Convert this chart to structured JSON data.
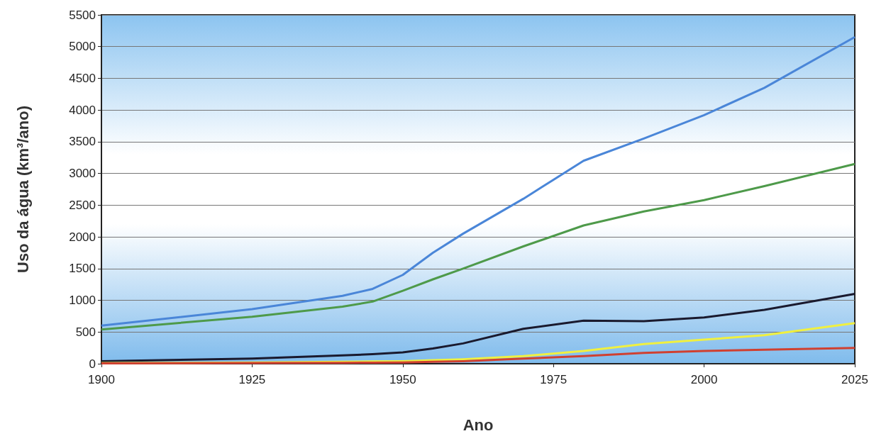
{
  "chart_data": {
    "type": "line",
    "xlabel": "Ano",
    "ylabel": "Uso da água (km³/ano)",
    "x": [
      1900,
      1925,
      1940,
      1945,
      1950,
      1955,
      1960,
      1970,
      1980,
      1990,
      2000,
      2010,
      2025
    ],
    "series": [
      {
        "color": "#4a86d8",
        "values": [
          600,
          860,
          1070,
          1180,
          1400,
          1750,
          2050,
          2600,
          3200,
          3550,
          3920,
          4350,
          5150
        ]
      },
      {
        "color": "#4e9a4a",
        "values": [
          540,
          740,
          900,
          980,
          1150,
          1330,
          1500,
          1850,
          2180,
          2400,
          2580,
          2800,
          3150
        ]
      },
      {
        "color": "#1a1a2e",
        "values": [
          40,
          80,
          130,
          150,
          180,
          240,
          320,
          550,
          680,
          670,
          730,
          850,
          1100
        ]
      },
      {
        "color": "#f0f040",
        "values": [
          10,
          20,
          30,
          35,
          40,
          55,
          70,
          120,
          200,
          310,
          380,
          450,
          640
        ]
      },
      {
        "color": "#d04030",
        "values": [
          5,
          10,
          15,
          18,
          20,
          30,
          40,
          80,
          120,
          170,
          200,
          220,
          250
        ]
      }
    ],
    "xlim": [
      1900,
      2025
    ],
    "xticks": [
      1900,
      1925,
      1950,
      1975,
      2000,
      2025
    ],
    "ylim": [
      0,
      5500
    ],
    "yticks": [
      0,
      500,
      1000,
      1500,
      2000,
      2500,
      3000,
      3500,
      4000,
      4500,
      5000,
      5500
    ],
    "grid": "y",
    "marker": "none",
    "line_style": "solid"
  }
}
